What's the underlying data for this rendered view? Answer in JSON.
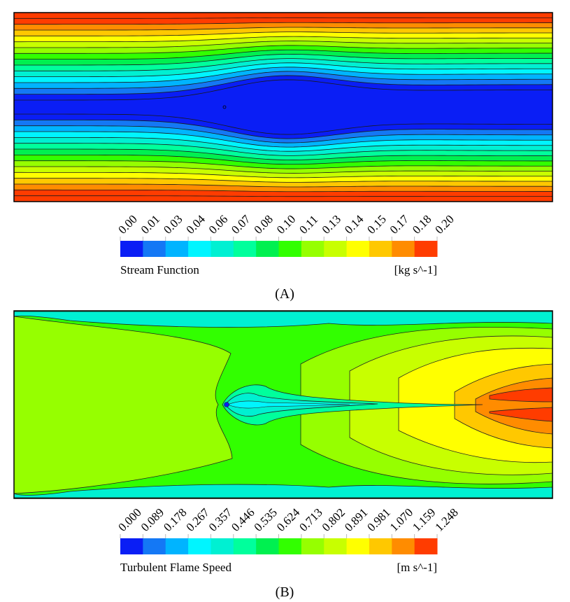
{
  "chart_data": [
    {
      "type": "heatmap",
      "subtype": "contour",
      "panel_label": "(A)",
      "variable": "Stream Function",
      "unit": "[kg s^-1]",
      "levels": [
        "0.00",
        "0.01",
        "0.03",
        "0.04",
        "0.06",
        "0.07",
        "0.08",
        "0.10",
        "0.11",
        "0.13",
        "0.14",
        "0.15",
        "0.17",
        "0.18",
        "0.20"
      ],
      "range": [
        0.0,
        0.2
      ],
      "description_values": {
        "centerline": 0.0,
        "walls": 0.2
      }
    },
    {
      "type": "heatmap",
      "subtype": "contour",
      "panel_label": "(B)",
      "variable": "Turbulent Flame Speed",
      "unit": "[m s^-1]",
      "levels": [
        "0.000",
        "0.089",
        "0.178",
        "0.267",
        "0.357",
        "0.446",
        "0.535",
        "0.624",
        "0.713",
        "0.802",
        "0.891",
        "0.981",
        "1.070",
        "1.159",
        "1.248"
      ],
      "range": [
        0.0,
        1.248
      ]
    }
  ],
  "colormap": [
    "#0a1ef5",
    "#1478f5",
    "#00b4ff",
    "#00f5ff",
    "#00f0d2",
    "#00ff9c",
    "#00f050",
    "#32ff00",
    "#96ff00",
    "#c8ff00",
    "#ffff00",
    "#ffc800",
    "#ff8c00",
    "#ff3c00"
  ]
}
